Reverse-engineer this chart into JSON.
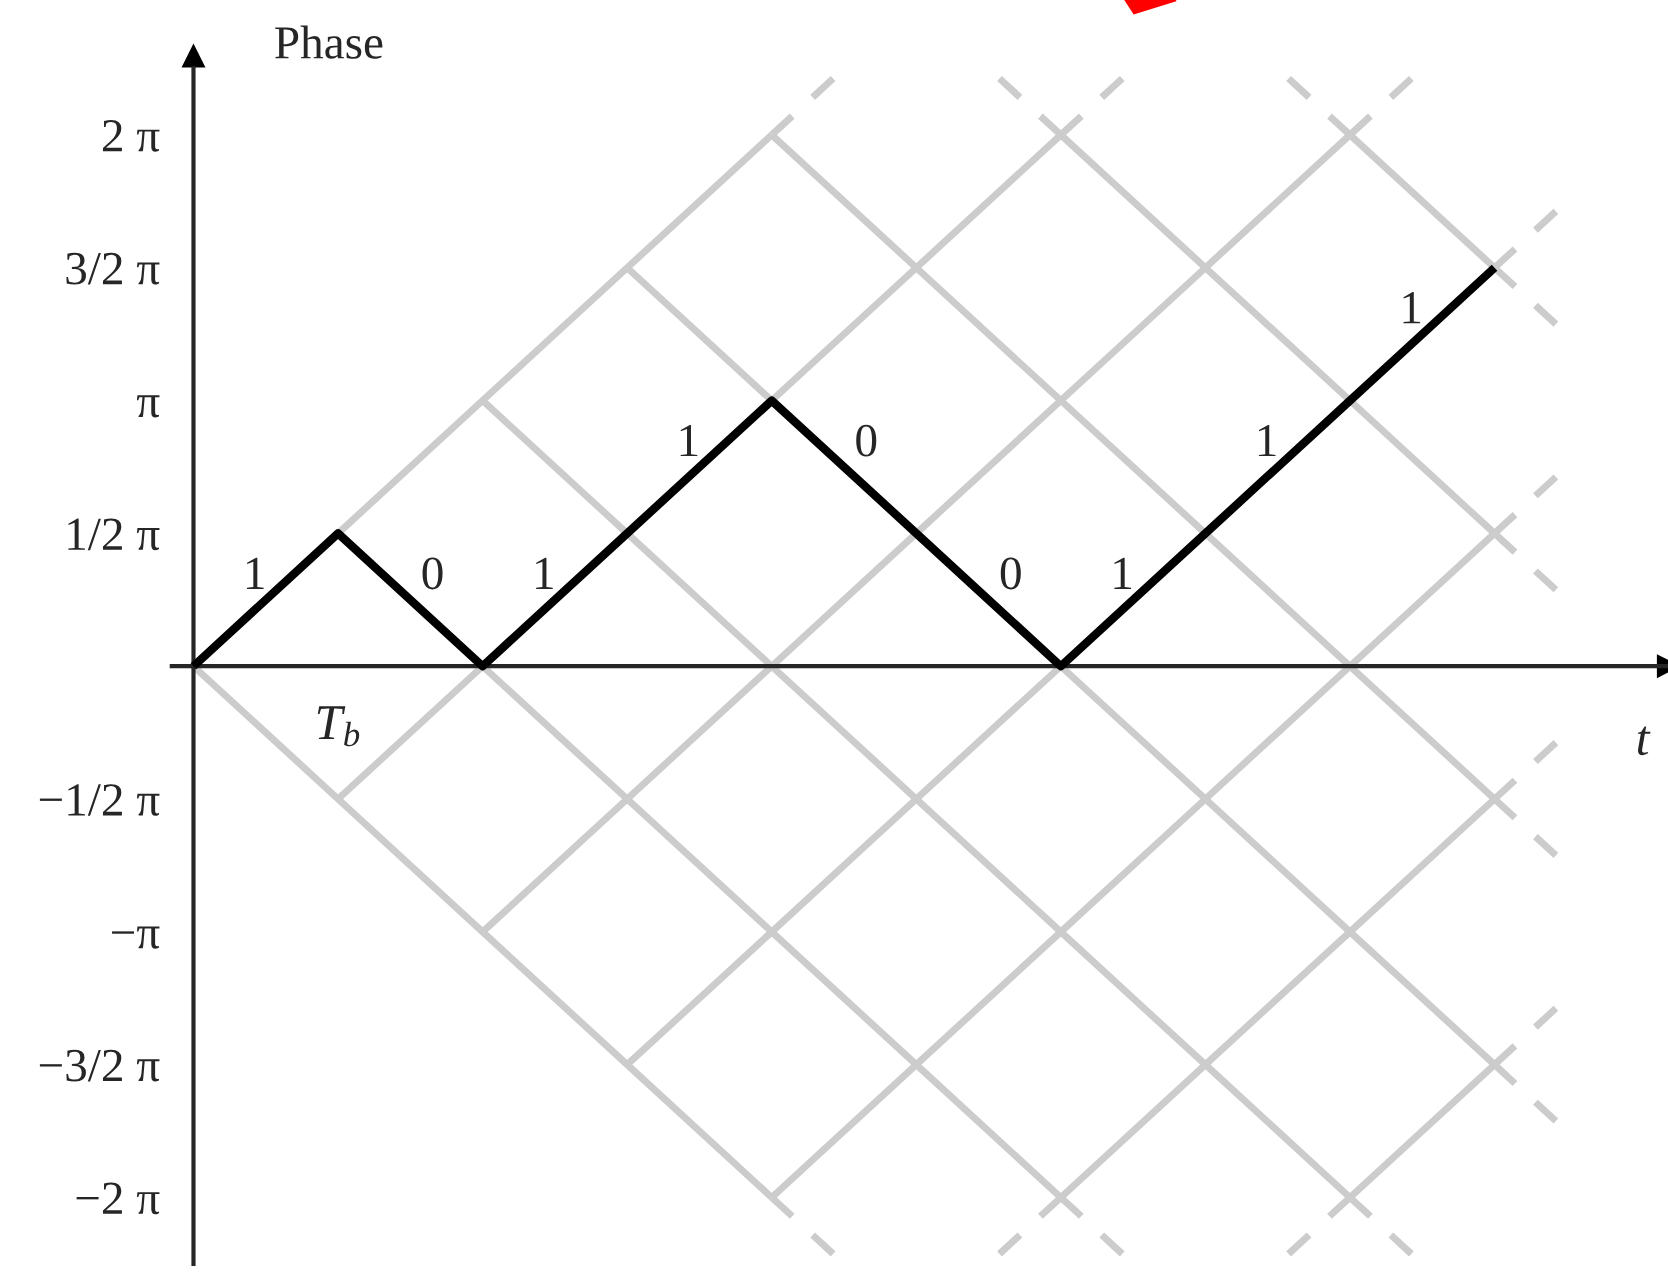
{
  "chart_data": {
    "type": "line",
    "ylabel": "Phase",
    "xlabel": "t",
    "categories": [
      null,
      "T$_{b}$",
      null,
      null,
      null,
      null,
      null,
      null,
      null,
      null
    ],
    "ylim": [
      -7.07,
      7.07
    ],
    "yticks": [
      {
        "value": -6.2832,
        "label": "−2 π"
      },
      {
        "value": -4.7124,
        "label": "−3/2 π"
      },
      {
        "value": -3.1416,
        "label": "−π"
      },
      {
        "value": -1.5708,
        "label": "−1/2 π"
      },
      {
        "value": 1.5708,
        "label": "1/2 π"
      },
      {
        "value": 3.1416,
        "label": "π"
      },
      {
        "value": 4.7124,
        "label": "3/2 π"
      },
      {
        "value": 6.2832,
        "label": "2 π"
      }
    ],
    "grid": false,
    "series": [
      {
        "color": "#cccccc",
        "values": [
          0,
          1.5708,
          3.1416,
          4.7124,
          6.2832,
          null,
          null,
          null,
          null,
          null
        ]
      },
      {
        "color": "#cccccc",
        "values": [
          null,
          -1.5708,
          0,
          1.5708,
          3.1416,
          4.7124,
          6.2832,
          null,
          null,
          null
        ]
      },
      {
        "color": "#cccccc",
        "values": [
          null,
          null,
          -3.1416,
          -1.5708,
          0,
          1.5708,
          3.1416,
          4.7124,
          6.2832,
          null
        ]
      },
      {
        "color": "#cccccc",
        "values": [
          null,
          null,
          null,
          -4.7124,
          -3.1416,
          -1.5708,
          0,
          1.5708,
          3.1416,
          4.7124
        ]
      },
      {
        "color": "#cccccc",
        "values": [
          null,
          null,
          null,
          null,
          -6.2832,
          -4.7124,
          -3.1416,
          -1.5708,
          0,
          1.5708
        ]
      },
      {
        "color": "#cccccc",
        "values": [
          null,
          null,
          null,
          null,
          null,
          null,
          -6.2832,
          -4.7124,
          -3.1416,
          -1.5708
        ]
      },
      {
        "color": "#cccccc",
        "values": [
          null,
          null,
          null,
          null,
          null,
          null,
          null,
          null,
          -6.2832,
          -4.7124
        ]
      },
      {
        "color": "#cccccc",
        "values": [
          0,
          -1.5708,
          -3.1416,
          -4.7124,
          -6.2832,
          null,
          null,
          null,
          null,
          null
        ]
      },
      {
        "color": "#cccccc",
        "values": [
          null,
          1.5708,
          0,
          -1.5708,
          -3.1416,
          -4.7124,
          -6.2832,
          null,
          null,
          null
        ]
      },
      {
        "color": "#cccccc",
        "values": [
          null,
          null,
          3.1416,
          1.5708,
          0,
          -1.5708,
          -3.1416,
          -4.7124,
          -6.2832,
          null
        ]
      },
      {
        "color": "#cccccc",
        "values": [
          null,
          null,
          null,
          4.7124,
          3.1416,
          1.5708,
          0,
          -1.5708,
          -3.1416,
          -4.7124
        ]
      },
      {
        "color": "#cccccc",
        "values": [
          null,
          null,
          null,
          null,
          6.2832,
          4.7124,
          3.1416,
          1.5708,
          0,
          -1.5708
        ]
      },
      {
        "color": "#cccccc",
        "values": [
          null,
          null,
          null,
          null,
          null,
          null,
          6.2832,
          4.7124,
          3.1416,
          1.5708
        ]
      },
      {
        "color": "#cccccc",
        "values": [
          null,
          null,
          null,
          null,
          null,
          null,
          null,
          null,
          6.2832,
          4.7124
        ]
      },
      {
        "color": "#000000",
        "values": [
          0,
          1.5708,
          0,
          1.5708,
          3.1416,
          1.5708,
          0,
          1.5708,
          3.1416,
          4.7124
        ]
      }
    ],
    "annotations": [
      "1",
      "0",
      "1",
      "1",
      "0",
      "0",
      "1",
      "1",
      "1"
    ]
  }
}
